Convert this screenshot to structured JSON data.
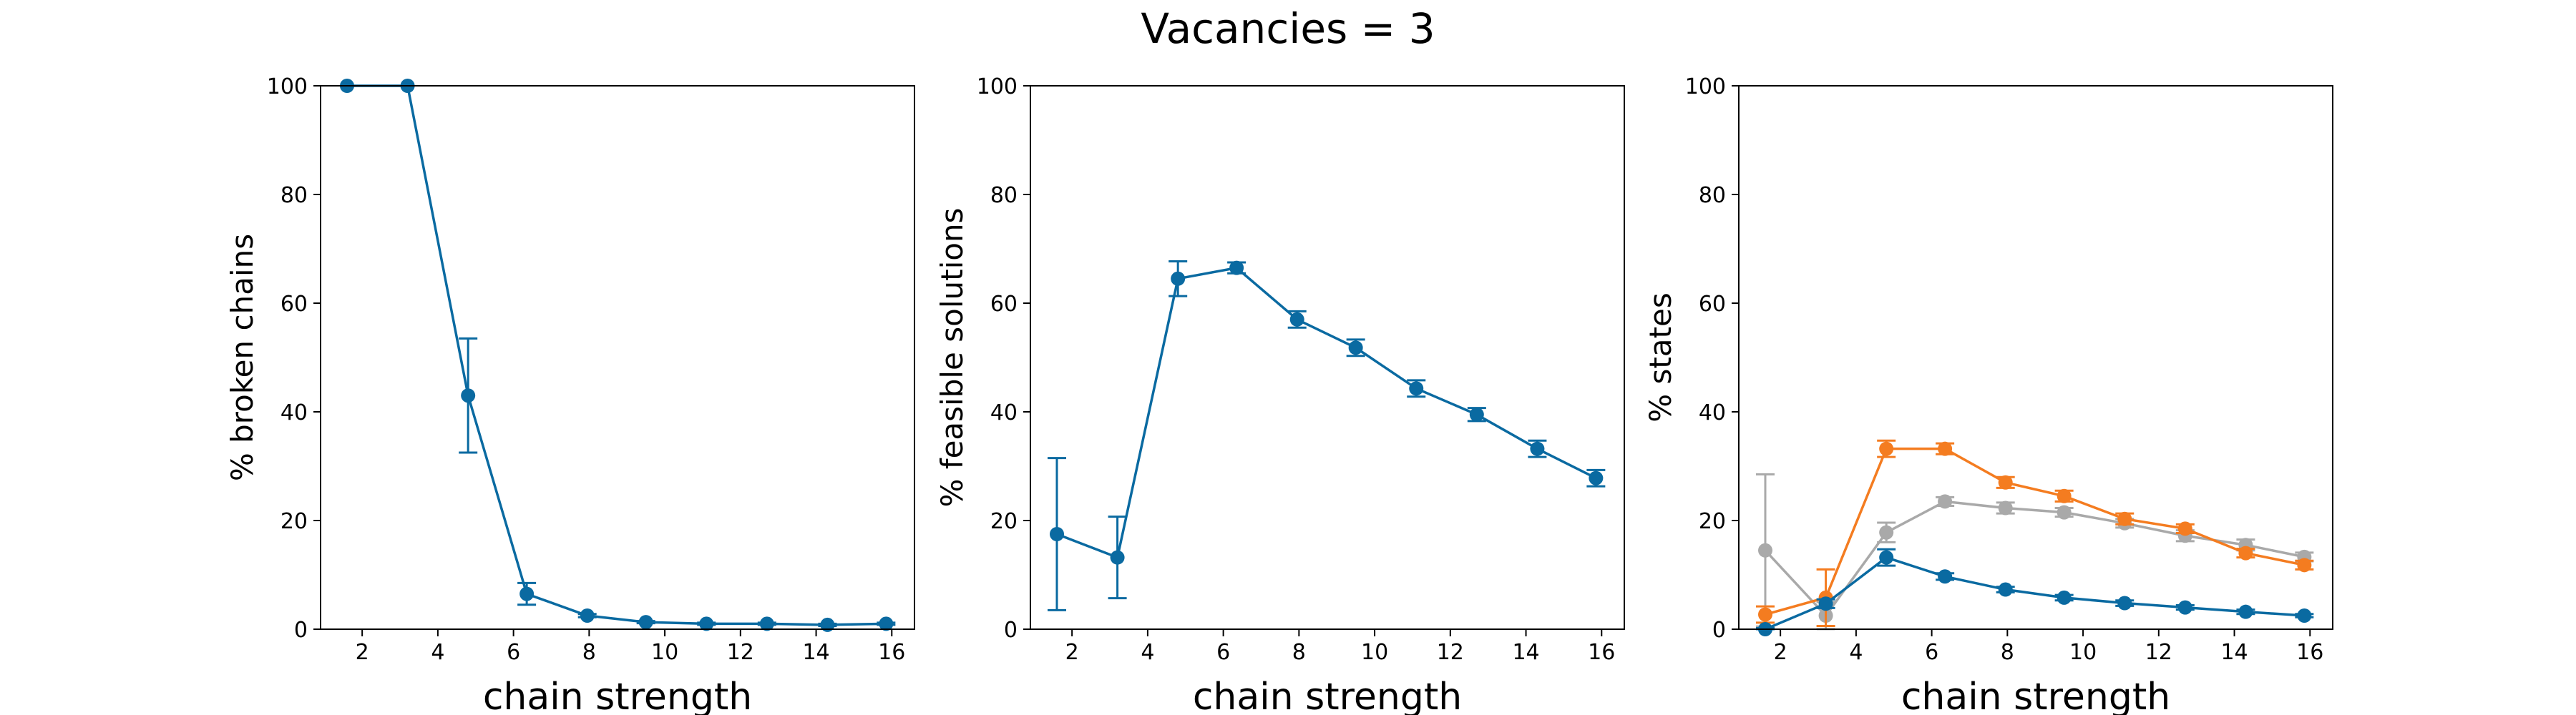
{
  "suptitle": "Vacancies = 3",
  "chart_data": [
    {
      "type": "line",
      "xlabel": "chain strength",
      "ylabel": "% broken chains",
      "ylim": [
        0,
        100
      ],
      "xlim": [
        0.9,
        16.6
      ],
      "xticks": [
        2,
        4,
        6,
        8,
        10,
        12,
        14,
        16
      ],
      "yticks": [
        0,
        20,
        40,
        60,
        80,
        100
      ],
      "grid": false,
      "series": [
        {
          "color": "#0a6aa1",
          "x": [
            1.6,
            3.2,
            4.8,
            6.35,
            7.95,
            9.5,
            11.1,
            12.7,
            14.3,
            15.85
          ],
          "y": [
            100,
            100,
            43,
            6.5,
            2.5,
            1.3,
            1.0,
            1.0,
            0.8,
            1.0
          ],
          "err": [
            0,
            0,
            10.5,
            2,
            0.3,
            0.2,
            0.2,
            0.2,
            0.2,
            0.2
          ]
        }
      ]
    },
    {
      "type": "line",
      "xlabel": "chain strength",
      "ylabel": "% feasible solutions",
      "ylim": [
        0,
        100
      ],
      "xlim": [
        0.9,
        16.6
      ],
      "xticks": [
        2,
        4,
        6,
        8,
        10,
        12,
        14,
        16
      ],
      "yticks": [
        0,
        20,
        40,
        60,
        80,
        100
      ],
      "grid": false,
      "series": [
        {
          "color": "#0a6aa1",
          "x": [
            1.6,
            3.2,
            4.8,
            6.35,
            7.95,
            9.5,
            11.1,
            12.7,
            14.3,
            15.85
          ],
          "y": [
            17.5,
            13.2,
            64.5,
            66.5,
            57.0,
            51.8,
            44.3,
            39.5,
            33.2,
            27.8
          ],
          "err": [
            14,
            7.5,
            3.2,
            1.0,
            1.5,
            1.5,
            1.5,
            1.2,
            1.5,
            1.5
          ]
        }
      ]
    },
    {
      "type": "line",
      "xlabel": "chain strength",
      "ylabel": "% states",
      "ylim": [
        0,
        100
      ],
      "xlim": [
        0.9,
        16.6
      ],
      "xticks": [
        2,
        4,
        6,
        8,
        10,
        12,
        14,
        16
      ],
      "yticks": [
        0,
        20,
        40,
        60,
        80,
        100
      ],
      "grid": false,
      "series": [
        {
          "color": "#a9a9a9",
          "x": [
            1.6,
            3.2,
            4.8,
            6.35,
            7.95,
            9.5,
            11.1,
            12.7,
            14.3,
            15.85
          ],
          "y": [
            14.5,
            2.5,
            17.8,
            23.5,
            22.3,
            21.5,
            19.5,
            17.2,
            15.5,
            13.3
          ],
          "err": [
            14,
            2.5,
            1.8,
            0.8,
            1.0,
            0.8,
            0.8,
            1.0,
            1.0,
            0.8
          ]
        },
        {
          "color": "#f47c20",
          "x": [
            1.6,
            3.2,
            4.8,
            6.35,
            7.95,
            9.5,
            11.1,
            12.7,
            14.3,
            15.85
          ],
          "y": [
            2.7,
            5.8,
            33.2,
            33.2,
            27.0,
            24.5,
            20.3,
            18.5,
            14.0,
            11.8
          ],
          "err": [
            1.5,
            5.2,
            1.5,
            1.0,
            1.0,
            1.0,
            1.0,
            0.8,
            0.8,
            0.8
          ]
        },
        {
          "color": "#0a6aa1",
          "x": [
            1.6,
            3.2,
            4.8,
            6.35,
            7.95,
            9.5,
            11.1,
            12.7,
            14.3,
            15.85
          ],
          "y": [
            0,
            4.7,
            13.2,
            9.7,
            7.3,
            5.8,
            4.8,
            4.0,
            3.2,
            2.5
          ],
          "err": [
            0.2,
            0.8,
            1.5,
            0.6,
            0.5,
            0.5,
            0.5,
            0.4,
            0.4,
            0.3
          ]
        }
      ]
    }
  ]
}
